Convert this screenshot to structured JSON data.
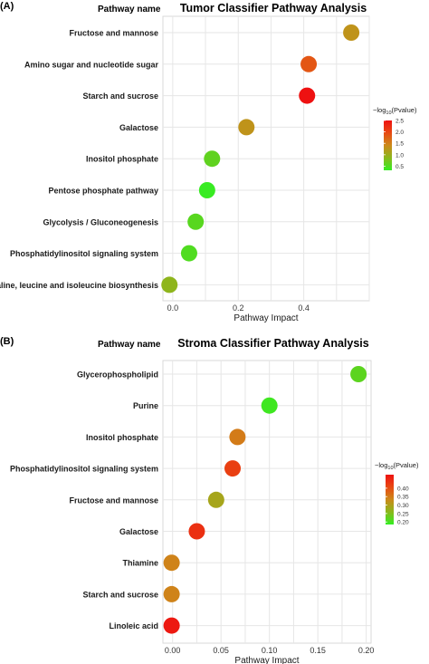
{
  "chart_data": [
    {
      "type": "scatter",
      "panel_label": "(A)",
      "title": "Tumor Classifier Pathway Analysis",
      "row_header": "Pathway name",
      "xlabel": "Pathway Impact",
      "xlim": [
        -0.03,
        0.6
      ],
      "xticks": [
        {
          "v": 0.0,
          "label": "0.0"
        },
        {
          "v": 0.2,
          "label": "0.2"
        },
        {
          "v": 0.4,
          "label": "0.4"
        }
      ],
      "grid": true,
      "legend": {
        "position": "right",
        "title": "−log10(Pvalue)",
        "ticks": [
          "2.5",
          "2.0",
          "1.5",
          "1.0",
          "0.5"
        ],
        "tick_values": [
          2.5,
          2.0,
          1.5,
          1.0,
          0.5
        ],
        "range": [
          0.32,
          2.5
        ]
      },
      "colorscale": [
        "#33ee22",
        "#8ab81c",
        "#cc8a1a",
        "#e84a12",
        "#ee1111"
      ],
      "points": [
        {
          "pathway": "Fructose and mannose",
          "impact": 0.545,
          "value": 1.3
        },
        {
          "pathway": "Amino sugar and nucleotide sugar",
          "impact": 0.415,
          "value": 1.85
        },
        {
          "pathway": "Starch and sucrose",
          "impact": 0.41,
          "value": 2.5
        },
        {
          "pathway": "Galactose",
          "impact": 0.225,
          "value": 1.3
        },
        {
          "pathway": "Inositol phosphate",
          "impact": 0.12,
          "value": 0.6
        },
        {
          "pathway": "Pentose phosphate pathway",
          "impact": 0.105,
          "value": 0.35
        },
        {
          "pathway": "Glycolysis / Gluconeogenesis",
          "impact": 0.07,
          "value": 0.55
        },
        {
          "pathway": "Phosphatidylinositol signaling system",
          "impact": 0.05,
          "value": 0.5
        },
        {
          "pathway": "Valine, leucine and isoleucine biosynthesis",
          "impact": -0.01,
          "value": 0.9
        }
      ]
    },
    {
      "type": "scatter",
      "panel_label": "(B)",
      "title": "Stroma Classifier Pathway Analysis",
      "row_header": "Pathway name",
      "xlabel": "Pathway Impact",
      "xlim": [
        -0.01,
        0.205
      ],
      "xticks": [
        {
          "v": 0.0,
          "label": "0.00"
        },
        {
          "v": 0.05,
          "label": "0.05"
        },
        {
          "v": 0.1,
          "label": "0.10"
        },
        {
          "v": 0.15,
          "label": "0.15"
        },
        {
          "v": 0.2,
          "label": "0.20"
        }
      ],
      "grid": true,
      "legend": {
        "position": "right",
        "title": "−log10(Pvalue)",
        "ticks": [
          "0.40",
          "0.35",
          "0.30",
          "0.25",
          "0.20"
        ],
        "tick_values": [
          0.4,
          0.35,
          0.3,
          0.25,
          0.2
        ],
        "range": [
          0.185,
          0.48
        ]
      },
      "colorscale": [
        "#33ee22",
        "#8ab81c",
        "#cc8a1a",
        "#e84a12",
        "#ee1111"
      ],
      "points": [
        {
          "pathway": "Glycerophospholipid",
          "impact": 0.192,
          "value": 0.22
        },
        {
          "pathway": "Purine",
          "impact": 0.1,
          "value": 0.195
        },
        {
          "pathway": "Inositol phosphate",
          "impact": 0.067,
          "value": 0.35
        },
        {
          "pathway": "Phosphatidylinositol signaling system",
          "impact": 0.062,
          "value": 0.42
        },
        {
          "pathway": "Fructose and mannose",
          "impact": 0.045,
          "value": 0.29
        },
        {
          "pathway": "Galactose",
          "impact": 0.025,
          "value": 0.44
        },
        {
          "pathway": "Thiamine",
          "impact": -0.001,
          "value": 0.34
        },
        {
          "pathway": "Starch and sucrose",
          "impact": -0.001,
          "value": 0.34
        },
        {
          "pathway": "Linoleic acid",
          "impact": -0.001,
          "value": 0.47
        }
      ]
    }
  ]
}
